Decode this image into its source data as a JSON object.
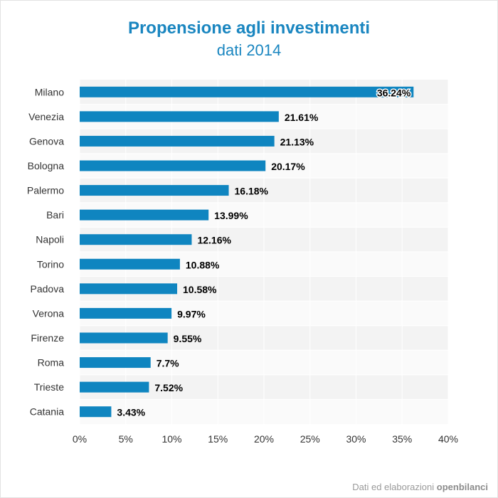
{
  "chart_data": {
    "type": "bar",
    "orientation": "horizontal",
    "title": "Propensione agli investimenti",
    "subtitle": "dati 2014",
    "categories": [
      "Milano",
      "Venezia",
      "Genova",
      "Bologna",
      "Palermo",
      "Bari",
      "Napoli",
      "Torino",
      "Padova",
      "Verona",
      "Firenze",
      "Roma",
      "Trieste",
      "Catania"
    ],
    "values": [
      36.24,
      21.61,
      21.13,
      20.17,
      16.18,
      13.99,
      12.16,
      10.88,
      10.58,
      9.97,
      9.55,
      7.7,
      7.52,
      3.43
    ],
    "value_labels": [
      "36.24%",
      "21.61%",
      "21.13%",
      "20.17%",
      "16.18%",
      "13.99%",
      "12.16%",
      "10.88%",
      "10.58%",
      "9.97%",
      "9.55%",
      "7.7%",
      "7.52%",
      "3.43%"
    ],
    "xlim": [
      0,
      40
    ],
    "x_ticks": [
      0,
      5,
      10,
      15,
      20,
      25,
      30,
      35,
      40
    ],
    "x_tick_labels": [
      "0%",
      "5%",
      "10%",
      "15%",
      "20%",
      "25%",
      "30%",
      "35%",
      "40%"
    ],
    "grid": true,
    "bar_color": "#0f85c0"
  },
  "footer": {
    "prefix": "Dati ed elaborazioni",
    "brand": "openbilanci"
  }
}
